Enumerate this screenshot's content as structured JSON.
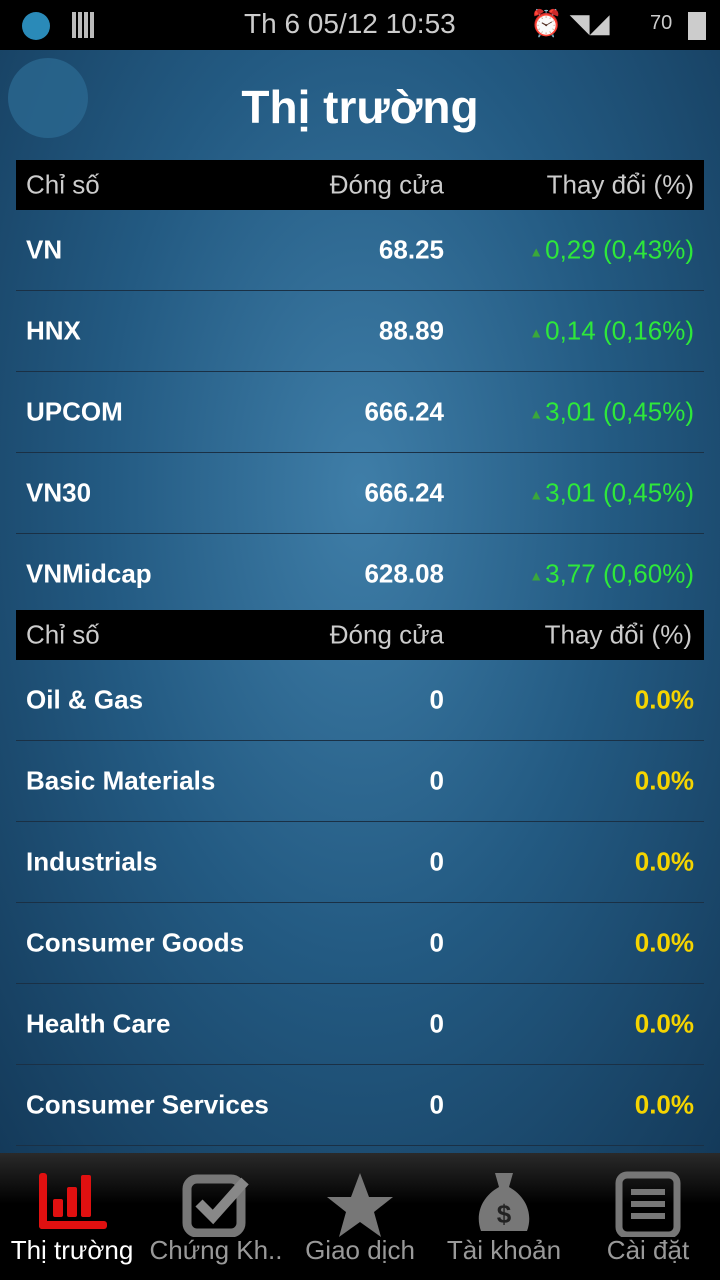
{
  "status_bar": {
    "time": "Th 6 05/12 10:53",
    "battery": "70"
  },
  "header": {
    "title": "Thị trường"
  },
  "colors": {
    "up": "#2ee83a",
    "zero": "#f5d400",
    "active_tab": "#e01010"
  },
  "table1": {
    "headers": [
      "Chỉ số",
      "Đóng cửa",
      "Thay đổi (%)"
    ],
    "rows": [
      {
        "name": "VN",
        "close": "68.25",
        "change": "0,29 (0,43%)"
      },
      {
        "name": "HNX",
        "close": "88.89",
        "change": "0,14 (0,16%)"
      },
      {
        "name": "UPCOM",
        "close": "666.24",
        "change": "3,01 (0,45%)"
      },
      {
        "name": "VN30",
        "close": "666.24",
        "change": "3,01 (0,45%)"
      },
      {
        "name": "VNMidcap",
        "close": "628.08",
        "change": "3,77 (0,60%)"
      }
    ]
  },
  "table2": {
    "headers": [
      "Chỉ số",
      "Đóng cửa",
      "Thay đổi (%)"
    ],
    "rows": [
      {
        "name": "Oil & Gas",
        "close": "0",
        "change": "0.0%"
      },
      {
        "name": "Basic Materials",
        "close": "0",
        "change": "0.0%"
      },
      {
        "name": "Industrials",
        "close": "0",
        "change": "0.0%"
      },
      {
        "name": "Consumer Goods",
        "close": "0",
        "change": "0.0%"
      },
      {
        "name": "Health Care",
        "close": "0",
        "change": "0.0%"
      },
      {
        "name": "Consumer Services",
        "close": "0",
        "change": "0.0%"
      }
    ]
  },
  "nav": {
    "tabs": [
      {
        "label": "Thị trường",
        "icon": "bar-chart-icon",
        "active": true
      },
      {
        "label": "Chứng Kh..",
        "icon": "checkbox-icon"
      },
      {
        "label": "Giao dịch",
        "icon": "star-icon"
      },
      {
        "label": "Tài khoản",
        "icon": "money-bag-icon"
      },
      {
        "label": "Cài đặt",
        "icon": "document-icon"
      }
    ]
  }
}
